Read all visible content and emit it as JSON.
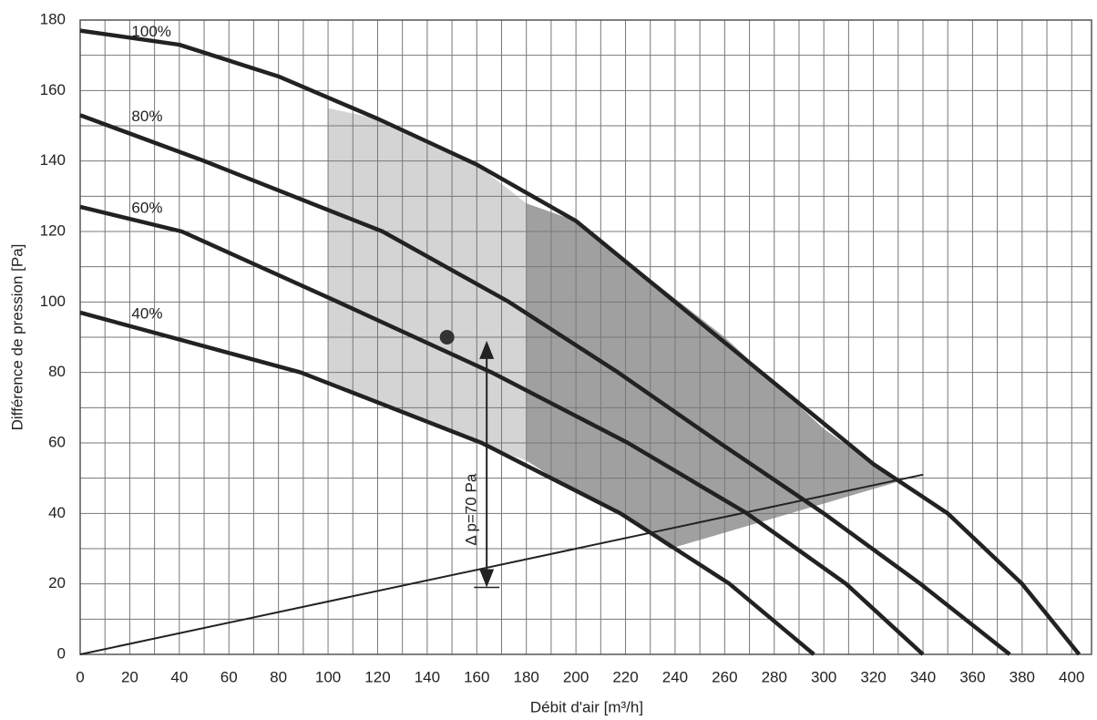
{
  "chart_data": {
    "type": "line",
    "x_label": "Débit d'air [m³/h]",
    "y_label": "Différence de pression [Pa]",
    "xlim": [
      0,
      408
    ],
    "ylim": [
      0,
      180
    ],
    "xticks": [
      0,
      20,
      40,
      60,
      80,
      100,
      120,
      140,
      160,
      180,
      200,
      220,
      240,
      260,
      280,
      300,
      320,
      340,
      360,
      380,
      400
    ],
    "yticks": [
      0,
      20,
      40,
      60,
      80,
      100,
      120,
      140,
      160,
      180
    ],
    "grid": true,
    "regions": [
      {
        "color": "#d4d4d4",
        "x": [
          100,
          100,
          120,
          140,
          160,
          180,
          180,
          160,
          140,
          120
        ],
        "values": [
          77,
          155,
          152,
          146,
          139,
          128,
          55,
          60,
          66,
          71
        ]
      },
      {
        "color": "#a0a0a0",
        "x": [
          180,
          200,
          220,
          240,
          260,
          280,
          300,
          330,
          238,
          220,
          200,
          180
        ],
        "values": [
          128,
          123,
          112,
          101,
          90,
          77,
          64,
          49,
          30,
          39,
          46,
          55
        ]
      }
    ],
    "series": [
      {
        "name": "100%",
        "color": "#222222",
        "x": [
          0,
          40,
          80,
          120,
          160,
          200,
          240,
          280,
          320,
          350,
          380,
          403
        ],
        "values": [
          177,
          173,
          164,
          152,
          139,
          123,
          100,
          77,
          54,
          40,
          20,
          0
        ]
      },
      {
        "name": "80%",
        "color": "#222222",
        "x": [
          0,
          50,
          122,
          173,
          217,
          258,
          300,
          339,
          375
        ],
        "values": [
          153,
          140,
          120,
          100,
          80,
          60,
          40,
          20,
          0
        ]
      },
      {
        "name": "60%",
        "color": "#222222",
        "x": [
          0,
          41,
          104,
          166,
          221,
          269,
          309,
          340
        ],
        "values": [
          127,
          120,
          100,
          80,
          60,
          40,
          20,
          0
        ]
      },
      {
        "name": "40%",
        "color": "#222222",
        "x": [
          0,
          89,
          162,
          218,
          262,
          296
        ],
        "values": [
          97,
          80,
          60,
          40,
          20,
          0
        ]
      }
    ],
    "system_line": {
      "color": "#222222",
      "x": [
        0,
        340
      ],
      "values": [
        0,
        51
      ]
    },
    "operating_point": {
      "x": 148,
      "y": 90
    },
    "delta_arrow": {
      "text": "Δ p=70 Pa",
      "x": 164,
      "from": 89,
      "to": 19
    }
  }
}
